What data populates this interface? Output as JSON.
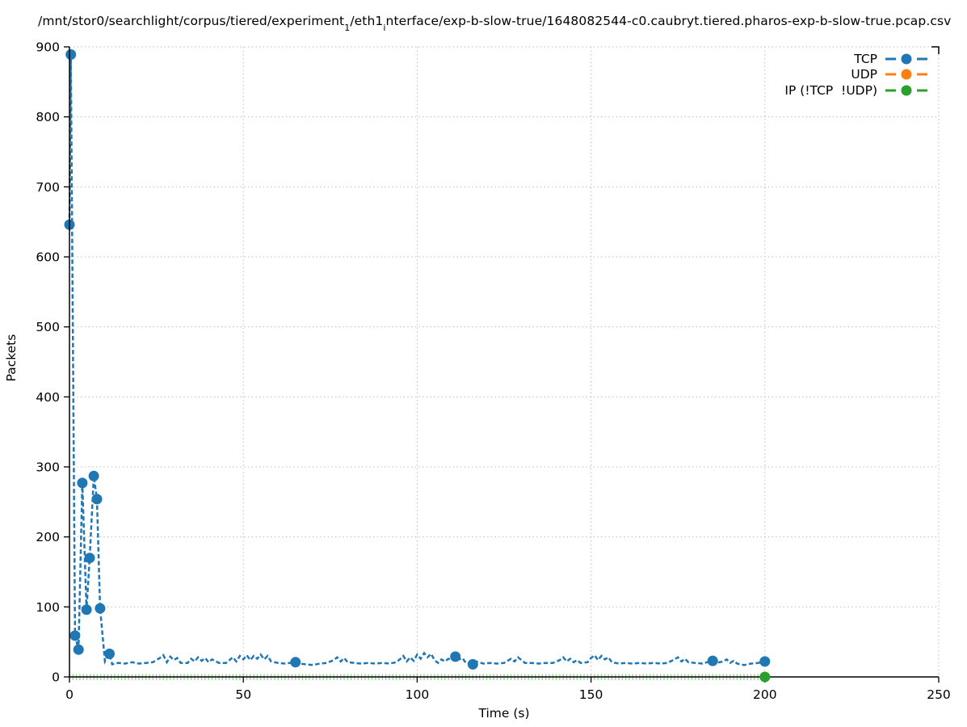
{
  "title": {
    "parts": [
      {
        "text": "/mnt/stor0/searchlight/corpus/tiered/experiment",
        "sub": false
      },
      {
        "text": "1",
        "sub": true
      },
      {
        "text": "/eth1",
        "sub": false
      },
      {
        "text": "i",
        "sub": true
      },
      {
        "text": "nterface/exp-b-slow-true/1648082544-c0.caubryt.tiered.pharos-exp-b-slow-true.pcap.csv",
        "sub": false
      }
    ]
  },
  "axes": {
    "x_label": "Time (s)",
    "y_label": "Packets",
    "x_ticks": [
      0,
      50,
      100,
      150,
      200,
      250
    ],
    "y_ticks": [
      0,
      100,
      200,
      300,
      400,
      500,
      600,
      700,
      800,
      900
    ],
    "x_range": [
      0,
      250
    ],
    "y_range": [
      0,
      900
    ],
    "grid": true
  },
  "legend": [
    {
      "id": "tcp",
      "label": "TCP",
      "color": "#1f77b4"
    },
    {
      "id": "udp",
      "label": "UDP",
      "color": "#ff7f0e"
    },
    {
      "id": "ip-other",
      "label": "IP (!TCP  !UDP)",
      "color": "#2ca02c"
    }
  ],
  "colors": {
    "tcp": "#1f77b4",
    "udp": "#ff7f0e",
    "ip_other": "#2ca02c",
    "grid": "#bdbdbd",
    "axis": "#000000"
  },
  "chart_data": {
    "type": "line",
    "title": "/mnt/stor0/searchlight/corpus/tiered/experiment_1/eth1_interface/exp-b-slow-true/1648082544-c0.caubryt.tiered.pharos-exp-b-slow-true.pcap.csv",
    "xlabel": "Time (s)",
    "ylabel": "Packets",
    "xlim": [
      0,
      250
    ],
    "ylim": [
      0,
      900
    ],
    "grid": "dotted",
    "legend_position": "top-right",
    "series": [
      {
        "name": "TCP",
        "color": "#1f77b4",
        "style": "dashed-linespoints",
        "points": [
          [
            0,
            646
          ],
          [
            0.4,
            889
          ],
          [
            1.6,
            59
          ],
          [
            2.6,
            39
          ],
          [
            3.7,
            277
          ],
          [
            4.9,
            96
          ],
          [
            5.8,
            170
          ],
          [
            7.0,
            287
          ],
          [
            7.9,
            254
          ],
          [
            8.8,
            98
          ],
          [
            10.2,
            22
          ],
          [
            11.5,
            33
          ],
          [
            12.3,
            18
          ],
          [
            14,
            20
          ],
          [
            16,
            19
          ],
          [
            18,
            21
          ],
          [
            20,
            19
          ],
          [
            22,
            20
          ],
          [
            24,
            21
          ],
          [
            26,
            27
          ],
          [
            27,
            31
          ],
          [
            28,
            21
          ],
          [
            29,
            29
          ],
          [
            30,
            24
          ],
          [
            31,
            27
          ],
          [
            32,
            20
          ],
          [
            34,
            20
          ],
          [
            35,
            26
          ],
          [
            36,
            22
          ],
          [
            37,
            28
          ],
          [
            38,
            23
          ],
          [
            39,
            27
          ],
          [
            40,
            21
          ],
          [
            41,
            25
          ],
          [
            43,
            20
          ],
          [
            45,
            20
          ],
          [
            47,
            28
          ],
          [
            48,
            22
          ],
          [
            49,
            30
          ],
          [
            50,
            25
          ],
          [
            51,
            31
          ],
          [
            52,
            24
          ],
          [
            53,
            30
          ],
          [
            54,
            26
          ],
          [
            55,
            32
          ],
          [
            56,
            25
          ],
          [
            57,
            30
          ],
          [
            58,
            22
          ],
          [
            60,
            20
          ],
          [
            62,
            19
          ],
          [
            65,
            21
          ],
          [
            66,
            19
          ],
          [
            68,
            18
          ],
          [
            70,
            17
          ],
          [
            72,
            19
          ],
          [
            74,
            20
          ],
          [
            76,
            24
          ],
          [
            77,
            28
          ],
          [
            78,
            22
          ],
          [
            79,
            27
          ],
          [
            80,
            21
          ],
          [
            82,
            20
          ],
          [
            84,
            19
          ],
          [
            86,
            20
          ],
          [
            88,
            19
          ],
          [
            90,
            20
          ],
          [
            92,
            19
          ],
          [
            94,
            21
          ],
          [
            95,
            25
          ],
          [
            96,
            30
          ],
          [
            97,
            22
          ],
          [
            98,
            28
          ],
          [
            99,
            23
          ],
          [
            100,
            32
          ],
          [
            101,
            26
          ],
          [
            102,
            34
          ],
          [
            103,
            28
          ],
          [
            104,
            33
          ],
          [
            105,
            24
          ],
          [
            106,
            20
          ],
          [
            107,
            25
          ],
          [
            108,
            22
          ],
          [
            109,
            26
          ],
          [
            110,
            24
          ],
          [
            111,
            29
          ],
          [
            112,
            25
          ],
          [
            113,
            27
          ],
          [
            114,
            20
          ],
          [
            116,
            18
          ],
          [
            117,
            22
          ],
          [
            119,
            19
          ],
          [
            121,
            20
          ],
          [
            123,
            19
          ],
          [
            125,
            20
          ],
          [
            127,
            26
          ],
          [
            128,
            22
          ],
          [
            129,
            28
          ],
          [
            130,
            24
          ],
          [
            131,
            20
          ],
          [
            133,
            20
          ],
          [
            135,
            19
          ],
          [
            137,
            20
          ],
          [
            139,
            20
          ],
          [
            141,
            24
          ],
          [
            142,
            28
          ],
          [
            143,
            22
          ],
          [
            144,
            26
          ],
          [
            145,
            21
          ],
          [
            146,
            24
          ],
          [
            147,
            20
          ],
          [
            149,
            21
          ],
          [
            150,
            27
          ],
          [
            151,
            31
          ],
          [
            152,
            24
          ],
          [
            153,
            30
          ],
          [
            154,
            25
          ],
          [
            155,
            28
          ],
          [
            156,
            21
          ],
          [
            158,
            19
          ],
          [
            160,
            20
          ],
          [
            162,
            19
          ],
          [
            164,
            20
          ],
          [
            166,
            19
          ],
          [
            168,
            20
          ],
          [
            170,
            19
          ],
          [
            172,
            20
          ],
          [
            174,
            25
          ],
          [
            175,
            28
          ],
          [
            176,
            22
          ],
          [
            177,
            26
          ],
          [
            178,
            21
          ],
          [
            180,
            20
          ],
          [
            182,
            19
          ],
          [
            185,
            23
          ],
          [
            186,
            20
          ],
          [
            188,
            22
          ],
          [
            189,
            25
          ],
          [
            190,
            20
          ],
          [
            191,
            23
          ],
          [
            192,
            19
          ],
          [
            194,
            17
          ],
          [
            196,
            19
          ],
          [
            198,
            20
          ],
          [
            200,
            22
          ]
        ],
        "marker_points": [
          [
            0,
            646
          ],
          [
            0.4,
            889
          ],
          [
            1.6,
            59
          ],
          [
            2.6,
            39
          ],
          [
            3.7,
            277
          ],
          [
            4.9,
            96
          ],
          [
            5.8,
            170
          ],
          [
            7.0,
            287
          ],
          [
            7.9,
            254
          ],
          [
            8.8,
            98
          ],
          [
            11.5,
            33
          ],
          [
            65,
            21
          ],
          [
            111,
            29
          ],
          [
            116,
            18
          ],
          [
            185,
            23
          ],
          [
            200,
            22
          ]
        ]
      },
      {
        "name": "UDP",
        "color": "#ff7f0e",
        "style": "dashed-linespoints",
        "points": [],
        "marker_points": []
      },
      {
        "name": "IP (!TCP  !UDP)",
        "color": "#2ca02c",
        "style": "dashed-linespoints",
        "baseline_ticks": {
          "t_start": 0,
          "t_end": 200,
          "step": 1,
          "y": 0
        },
        "marker_points": [
          [
            200,
            0
          ]
        ]
      }
    ]
  }
}
